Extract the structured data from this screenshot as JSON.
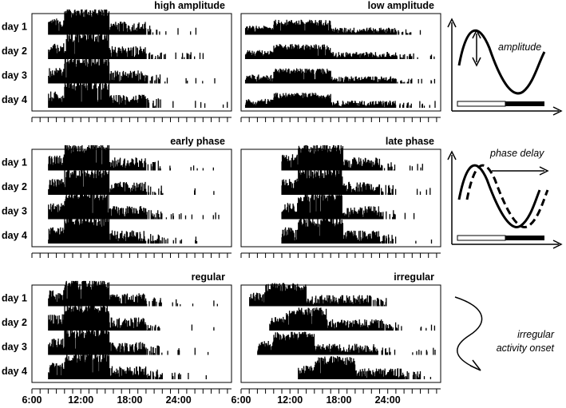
{
  "chart_data": {
    "type": "actogram",
    "day_labels": [
      "day 1",
      "day 2",
      "day 3",
      "day 4"
    ],
    "x_tick_labels": [
      "6:00",
      "12:00",
      "18:00",
      "24:00"
    ],
    "x_tick_hours": [
      6,
      12,
      18,
      24
    ],
    "x_range_hours": [
      6,
      30.5
    ],
    "minor_tick_interval_hours": 1,
    "panels": [
      {
        "title": "high amplitude",
        "onset": 8,
        "offset": 22,
        "peak_start": 10,
        "peak_end": 15.5,
        "amplitude": 1.0,
        "phase_shift": [
          0,
          0,
          0,
          0
        ],
        "onset_jitter": [
          0,
          0,
          0,
          0
        ]
      },
      {
        "title": "low amplitude",
        "onset": 6.5,
        "offset": 27,
        "peak_start": 10,
        "peak_end": 17,
        "amplitude": 0.55,
        "phase_shift": [
          0,
          0,
          0,
          0
        ],
        "onset_jitter": [
          0,
          0,
          0,
          0
        ]
      },
      {
        "title": "early phase",
        "onset": 8,
        "offset": 22,
        "peak_start": 10,
        "peak_end": 15.5,
        "amplitude": 1.0,
        "phase_shift": [
          0,
          0,
          0,
          0
        ],
        "onset_jitter": [
          0,
          0,
          0,
          0
        ]
      },
      {
        "title": "late phase",
        "onset": 8,
        "offset": 22,
        "peak_start": 10,
        "peak_end": 15.5,
        "amplitude": 1.0,
        "phase_shift": [
          3,
          3,
          3,
          3
        ],
        "onset_jitter": [
          0,
          0,
          0,
          0
        ]
      },
      {
        "title": "regular",
        "onset": 8,
        "offset": 22,
        "peak_start": 10,
        "peak_end": 15.5,
        "amplitude": 1.0,
        "phase_shift": [
          0,
          0,
          0,
          0
        ],
        "onset_jitter": [
          0,
          0,
          0,
          0
        ]
      },
      {
        "title": "irregular",
        "onset": 7,
        "offset": 24,
        "peak_start": 9,
        "peak_end": 14,
        "amplitude": 0.85,
        "phase_shift": [
          0,
          1.5,
          0.5,
          4
        ],
        "onset_jitter": [
          0,
          1,
          0.5,
          2
        ]
      }
    ]
  },
  "legend": {
    "amplitude_label": "amplitude",
    "phase_delay_label": "phase delay",
    "irregular_label_line1": "irregular",
    "irregular_label_line2": "activity onset"
  }
}
